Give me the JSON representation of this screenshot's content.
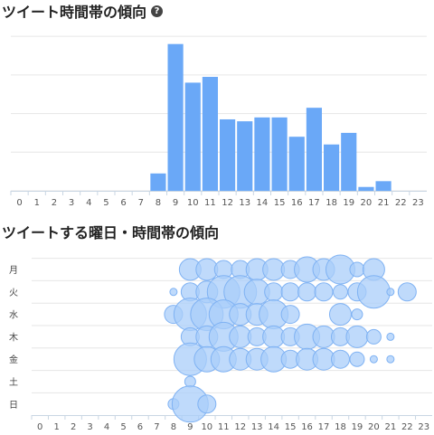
{
  "section1": {
    "title": "ツイート時間帯の傾向",
    "help_icon_glyph": "?"
  },
  "section2": {
    "title": "ツイートする曜日・時間帯の傾向"
  },
  "colors": {
    "bar": "#6aa8f7",
    "bubble_fill": "#a9cdfa",
    "bubble_stroke": "#7fb2f3",
    "grid": "#e6e6e6",
    "axis": "#c9d6e3"
  },
  "chart_data": [
    {
      "type": "bar",
      "title": "ツイート時間帯の傾向",
      "categories": [
        "0",
        "1",
        "2",
        "3",
        "4",
        "5",
        "6",
        "7",
        "8",
        "9",
        "10",
        "11",
        "12",
        "13",
        "14",
        "15",
        "16",
        "17",
        "18",
        "19",
        "20",
        "21",
        "22",
        "23"
      ],
      "values": [
        0,
        0,
        0,
        0,
        0,
        0,
        0,
        0,
        9,
        76,
        56,
        59,
        37,
        36,
        38,
        38,
        28,
        43,
        24,
        30,
        2,
        5,
        0,
        0
      ],
      "ylim": [
        0,
        81
      ],
      "grid": true,
      "xlabel": "",
      "ylabel": ""
    },
    {
      "type": "scatter",
      "title": "ツイートする曜日・時間帯の傾向",
      "x_categories": [
        "0",
        "1",
        "2",
        "3",
        "4",
        "5",
        "6",
        "7",
        "8",
        "9",
        "10",
        "11",
        "12",
        "13",
        "14",
        "15",
        "16",
        "17",
        "18",
        "19",
        "20",
        "21",
        "22",
        "23"
      ],
      "y_categories": [
        "月",
        "火",
        "水",
        "木",
        "金",
        "土",
        "日"
      ],
      "series": [
        {
          "day": "月",
          "sizes": [
            0,
            0,
            0,
            0,
            0,
            0,
            0,
            0,
            0,
            5,
            5,
            4,
            4,
            5,
            5,
            4,
            6,
            5,
            7,
            3,
            5,
            0,
            0,
            0
          ]
        },
        {
          "day": "火",
          "sizes": [
            0,
            0,
            0,
            0,
            0,
            0,
            0,
            0,
            1,
            4,
            5,
            8,
            8,
            6,
            4,
            4,
            4,
            4,
            3,
            4,
            8,
            1,
            4,
            0
          ]
        },
        {
          "day": "水",
          "sizes": [
            0,
            0,
            0,
            0,
            0,
            0,
            0,
            0,
            4,
            8,
            8,
            7,
            5,
            5,
            7,
            4,
            0,
            0,
            5,
            2,
            0,
            0,
            0,
            0
          ]
        },
        {
          "day": "木",
          "sizes": [
            0,
            0,
            0,
            0,
            0,
            0,
            0,
            0,
            0,
            4,
            5,
            7,
            5,
            4,
            5,
            4,
            6,
            5,
            4,
            5,
            3,
            1,
            0,
            0
          ]
        },
        {
          "day": "金",
          "sizes": [
            0,
            0,
            0,
            0,
            0,
            0,
            0,
            0,
            0,
            8,
            6,
            6,
            5,
            5,
            6,
            4,
            5,
            5,
            4,
            3,
            1,
            1,
            0,
            0
          ]
        },
        {
          "day": "土",
          "sizes": [
            0,
            0,
            0,
            0,
            0,
            0,
            0,
            0,
            0,
            2,
            0,
            0,
            0,
            0,
            0,
            0,
            0,
            0,
            0,
            0,
            0,
            0,
            0,
            0
          ]
        },
        {
          "day": "日",
          "sizes": [
            0,
            0,
            0,
            0,
            0,
            0,
            0,
            0,
            2,
            9,
            4,
            0,
            0,
            0,
            0,
            0,
            0,
            0,
            0,
            0,
            0,
            0,
            0,
            0
          ]
        }
      ],
      "grid": true
    }
  ]
}
